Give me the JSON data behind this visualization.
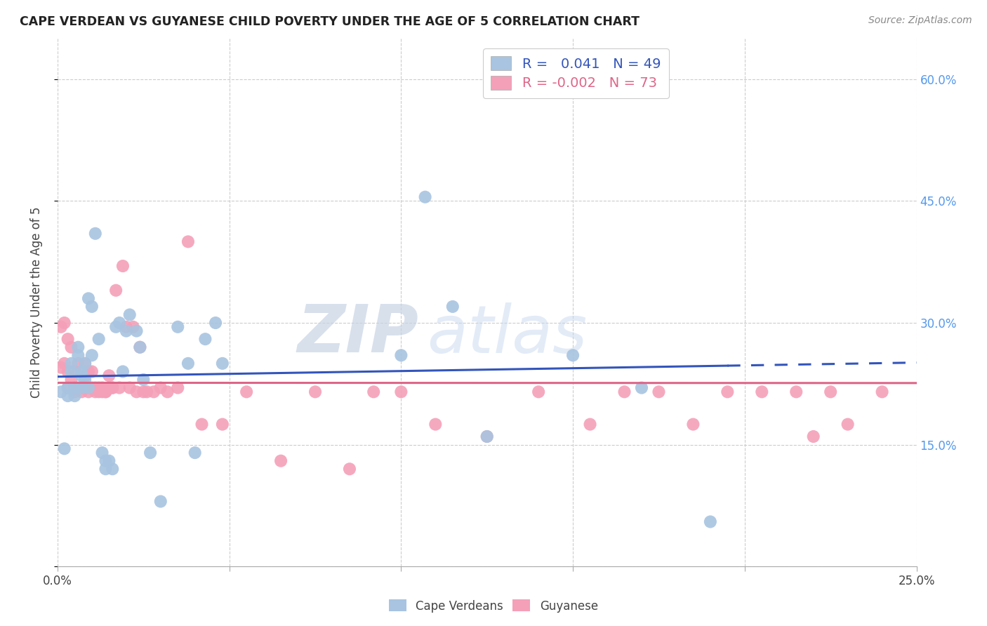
{
  "title": "CAPE VERDEAN VS GUYANESE CHILD POVERTY UNDER THE AGE OF 5 CORRELATION CHART",
  "source": "Source: ZipAtlas.com",
  "ylabel": "Child Poverty Under the Age of 5",
  "xlim": [
    0.0,
    0.25
  ],
  "ylim": [
    0.0,
    0.65
  ],
  "xticks": [
    0.0,
    0.05,
    0.1,
    0.15,
    0.2,
    0.25
  ],
  "yticks": [
    0.0,
    0.15,
    0.3,
    0.45,
    0.6
  ],
  "r_cv": 0.041,
  "n_cv": 49,
  "r_gy": -0.002,
  "n_gy": 73,
  "watermark_zip": "ZIP",
  "watermark_atlas": "atlas",
  "blue_color": "#a8c4e0",
  "pink_color": "#f4a0b8",
  "line_blue": "#3355bb",
  "line_pink": "#dd6688",
  "right_tick_color": "#5599ee",
  "cv_x": [
    0.001,
    0.002,
    0.003,
    0.003,
    0.004,
    0.004,
    0.005,
    0.005,
    0.006,
    0.006,
    0.007,
    0.007,
    0.007,
    0.008,
    0.008,
    0.009,
    0.009,
    0.01,
    0.01,
    0.011,
    0.012,
    0.013,
    0.014,
    0.014,
    0.015,
    0.016,
    0.017,
    0.018,
    0.019,
    0.02,
    0.021,
    0.023,
    0.024,
    0.025,
    0.027,
    0.03,
    0.035,
    0.038,
    0.04,
    0.043,
    0.046,
    0.048,
    0.1,
    0.107,
    0.115,
    0.125,
    0.15,
    0.17,
    0.19
  ],
  "cv_y": [
    0.215,
    0.145,
    0.22,
    0.21,
    0.25,
    0.24,
    0.22,
    0.21,
    0.26,
    0.27,
    0.22,
    0.24,
    0.235,
    0.23,
    0.25,
    0.22,
    0.33,
    0.32,
    0.26,
    0.41,
    0.28,
    0.14,
    0.13,
    0.12,
    0.13,
    0.12,
    0.295,
    0.3,
    0.24,
    0.29,
    0.31,
    0.29,
    0.27,
    0.23,
    0.14,
    0.08,
    0.295,
    0.25,
    0.14,
    0.28,
    0.3,
    0.25,
    0.26,
    0.455,
    0.32,
    0.16,
    0.26,
    0.22,
    0.055
  ],
  "gy_x": [
    0.001,
    0.001,
    0.002,
    0.002,
    0.003,
    0.003,
    0.003,
    0.004,
    0.004,
    0.005,
    0.005,
    0.005,
    0.006,
    0.006,
    0.007,
    0.007,
    0.008,
    0.008,
    0.008,
    0.009,
    0.009,
    0.009,
    0.01,
    0.01,
    0.011,
    0.011,
    0.012,
    0.012,
    0.013,
    0.013,
    0.014,
    0.014,
    0.015,
    0.015,
    0.016,
    0.016,
    0.017,
    0.018,
    0.019,
    0.02,
    0.021,
    0.022,
    0.023,
    0.024,
    0.025,
    0.026,
    0.028,
    0.03,
    0.032,
    0.035,
    0.038,
    0.042,
    0.048,
    0.055,
    0.065,
    0.075,
    0.085,
    0.092,
    0.1,
    0.11,
    0.125,
    0.14,
    0.155,
    0.165,
    0.175,
    0.185,
    0.195,
    0.205,
    0.215,
    0.22,
    0.225,
    0.23,
    0.24
  ],
  "gy_y": [
    0.245,
    0.295,
    0.25,
    0.3,
    0.22,
    0.24,
    0.28,
    0.23,
    0.27,
    0.22,
    0.24,
    0.215,
    0.22,
    0.25,
    0.215,
    0.22,
    0.235,
    0.22,
    0.25,
    0.215,
    0.22,
    0.24,
    0.22,
    0.24,
    0.215,
    0.22,
    0.22,
    0.215,
    0.22,
    0.215,
    0.215,
    0.215,
    0.22,
    0.235,
    0.22,
    0.22,
    0.34,
    0.22,
    0.37,
    0.295,
    0.22,
    0.295,
    0.215,
    0.27,
    0.215,
    0.215,
    0.215,
    0.22,
    0.215,
    0.22,
    0.4,
    0.175,
    0.175,
    0.215,
    0.13,
    0.215,
    0.12,
    0.215,
    0.215,
    0.175,
    0.16,
    0.215,
    0.175,
    0.215,
    0.215,
    0.175,
    0.215,
    0.215,
    0.215,
    0.16,
    0.215,
    0.175,
    0.215
  ]
}
